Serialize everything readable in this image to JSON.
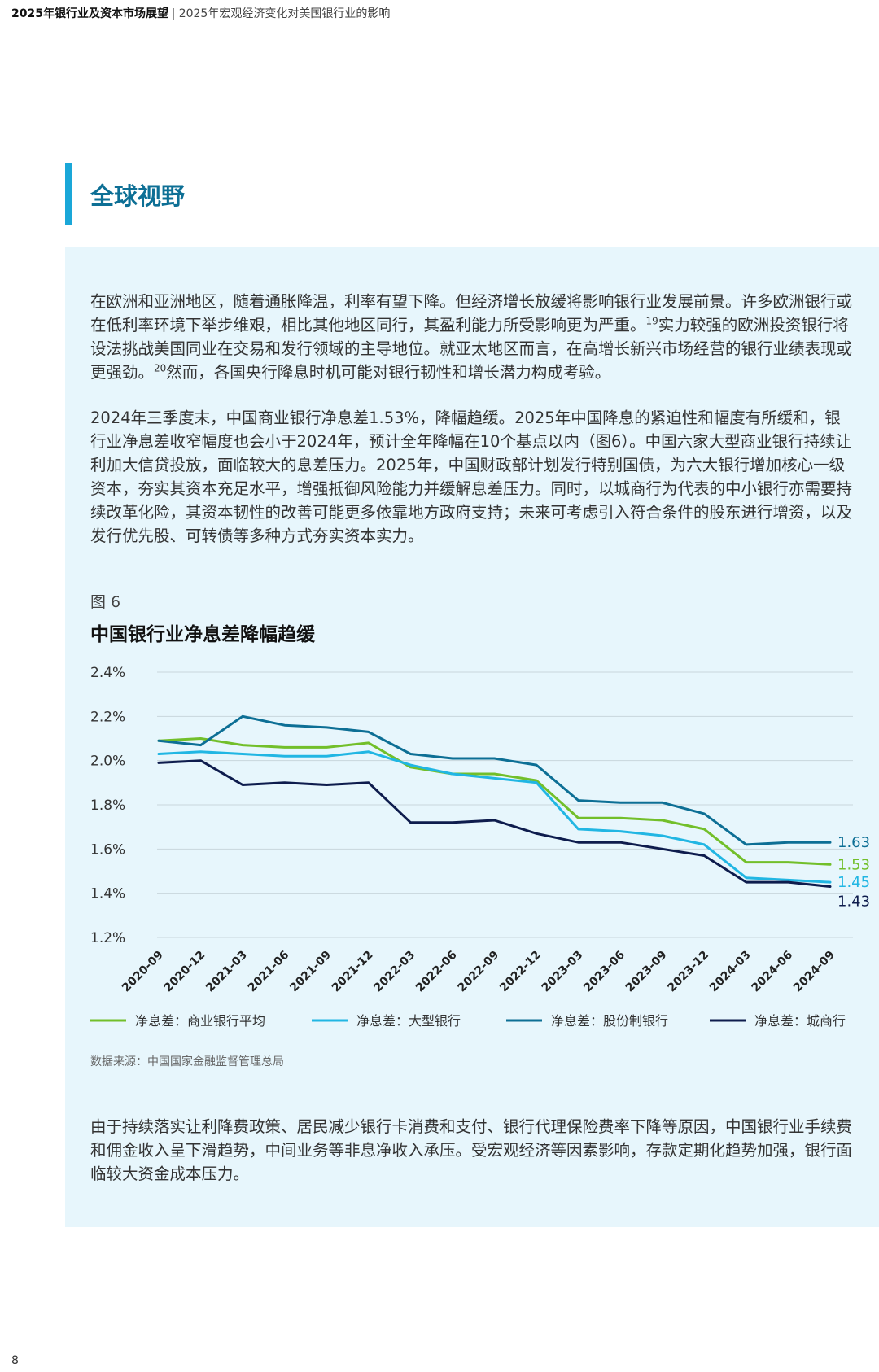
{
  "header": {
    "title": "2025年银行业及资本市场展望",
    "separator": "|",
    "subtitle": "2025年宏观经济变化对美国银行业的影响"
  },
  "section": {
    "title": "全球视野"
  },
  "paragraphs": {
    "p1_a": "在欧洲和亚洲地区，随着通胀降温，利率有望下降。但经济增长放缓将影响银行业发展前景。许多欧洲银行或在低利率环境下举步维艰，相比其他地区同行，其盈利能力所受影响更为严重。",
    "p1_ref1": "19",
    "p1_b": "实力较强的欧洲投资银行将设法挑战美国同业在交易和发行领域的主导地位。就亚太地区而言，在高增长新兴市场经营的银行业绩表现或更强劲。",
    "p1_ref2": "20",
    "p1_c": "然而，各国央行降息时机可能对银行韧性和增长潜力构成考验。",
    "p2": "2024年三季度末，中国商业银行净息差1.53%，降幅趋缓。2025年中国降息的紧迫性和幅度有所缓和，银行业净息差收窄幅度也会小于2024年，预计全年降幅在10个基点以内（图6）。中国六家大型商业银行持续让利加大信贷投放，面临较大的息差压力。2025年，中国财政部计划发行特别国债，为六大银行增加核心一级资本，夯实其资本充足水平，增强抵御风险能力并缓解息差压力。同时，以城商行为代表的中小银行亦需要持续改革化险，其资本韧性的改善可能更多依靠地方政府支持；未来可考虑引入符合条件的股东进行增资，以及发行优先股、可转债等多种方式夯实资本实力。",
    "p3": "由于持续落实让利降费政策、居民减少银行卡消费和支付、银行代理保险费率下降等原因，中国银行业手续费和佣金收入呈下滑趋势，中间业务等非息净收入承压。受宏观经济等因素影响，存款定期化趋势加强，银行面临较大资金成本压力。"
  },
  "figure": {
    "label": "图 6",
    "title": "中国银行业净息差降幅趋缓",
    "source": "数据来源：中国国家金融监督管理总局"
  },
  "chart_data": {
    "type": "line",
    "title": "中国银行业净息差降幅趋缓",
    "x": [
      "2020-09",
      "2020-12",
      "2021-03",
      "2021-06",
      "2021-09",
      "2021-12",
      "2022-03",
      "2022-06",
      "2022-09",
      "2022-12",
      "2023-03",
      "2023-06",
      "2023-09",
      "2023-12",
      "2024-03",
      "2024-06",
      "2024-09"
    ],
    "ylim": [
      1.2,
      2.4
    ],
    "yticks": [
      2.4,
      2.2,
      2.0,
      1.8,
      1.6,
      1.4,
      1.2
    ],
    "ytick_labels": [
      "2.4%",
      "2.2%",
      "2.0%",
      "1.8%",
      "1.6%",
      "1.4%",
      "1.2%"
    ],
    "grid": true,
    "legend_position": "bottom",
    "series": [
      {
        "name": "净息差：商业银行平均",
        "color": "#72bf2a",
        "end_label": "1.53",
        "values": [
          2.09,
          2.1,
          2.07,
          2.06,
          2.06,
          2.08,
          1.97,
          1.94,
          1.94,
          1.91,
          1.74,
          1.74,
          1.73,
          1.69,
          1.54,
          1.54,
          1.53
        ]
      },
      {
        "name": "净息差：大型银行",
        "color": "#21b6e3",
        "end_label": "1.45",
        "values": [
          2.03,
          2.04,
          2.03,
          2.02,
          2.02,
          2.04,
          1.98,
          1.94,
          1.92,
          1.9,
          1.69,
          1.68,
          1.66,
          1.62,
          1.47,
          1.46,
          1.45
        ]
      },
      {
        "name": "净息差：股份制银行",
        "color": "#0d6f95",
        "end_label": "1.63",
        "values": [
          2.09,
          2.07,
          2.2,
          2.16,
          2.15,
          2.13,
          2.03,
          2.01,
          2.01,
          1.98,
          1.82,
          1.81,
          1.81,
          1.76,
          1.62,
          1.63,
          1.63
        ]
      },
      {
        "name": "净息差：城商行",
        "color": "#0e1c4d",
        "end_label": "1.43",
        "values": [
          1.99,
          2.0,
          1.89,
          1.9,
          1.89,
          1.9,
          1.72,
          1.72,
          1.73,
          1.67,
          1.63,
          1.63,
          1.6,
          1.57,
          1.45,
          1.45,
          1.43
        ]
      }
    ]
  },
  "page": {
    "number": "8"
  }
}
